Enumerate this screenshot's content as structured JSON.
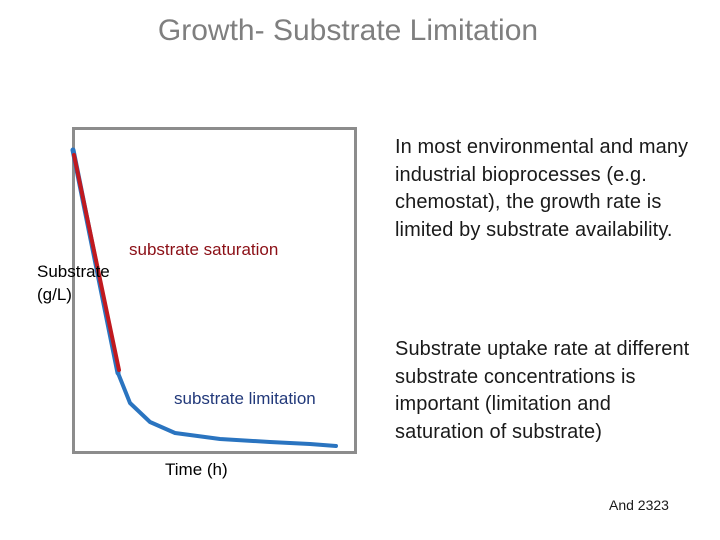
{
  "title": "Growth- Substrate Limitation",
  "diagram": {
    "y_label": "Substrate\n(g/L)",
    "x_label": "Time (h)",
    "annotation_saturation": "substrate saturation",
    "annotation_limitation": "substrate limitation",
    "colors": {
      "saturation_line": "#c0191f",
      "limitation_line": "#2a74c0",
      "frame": "#8c8c8c"
    },
    "curve_shape": {
      "saturation_segment": "steep linear decline",
      "limitation_segment": "exponential tail approaching zero"
    }
  },
  "text": {
    "paragraph_1": "In most environmental and many industrial bioprocesses (e.g. chemostat), the growth rate is limited by substrate availability.",
    "paragraph_2": "Substrate uptake rate at different substrate concentrations is important (limitation and saturation of substrate)"
  },
  "footer": "And 2323"
}
